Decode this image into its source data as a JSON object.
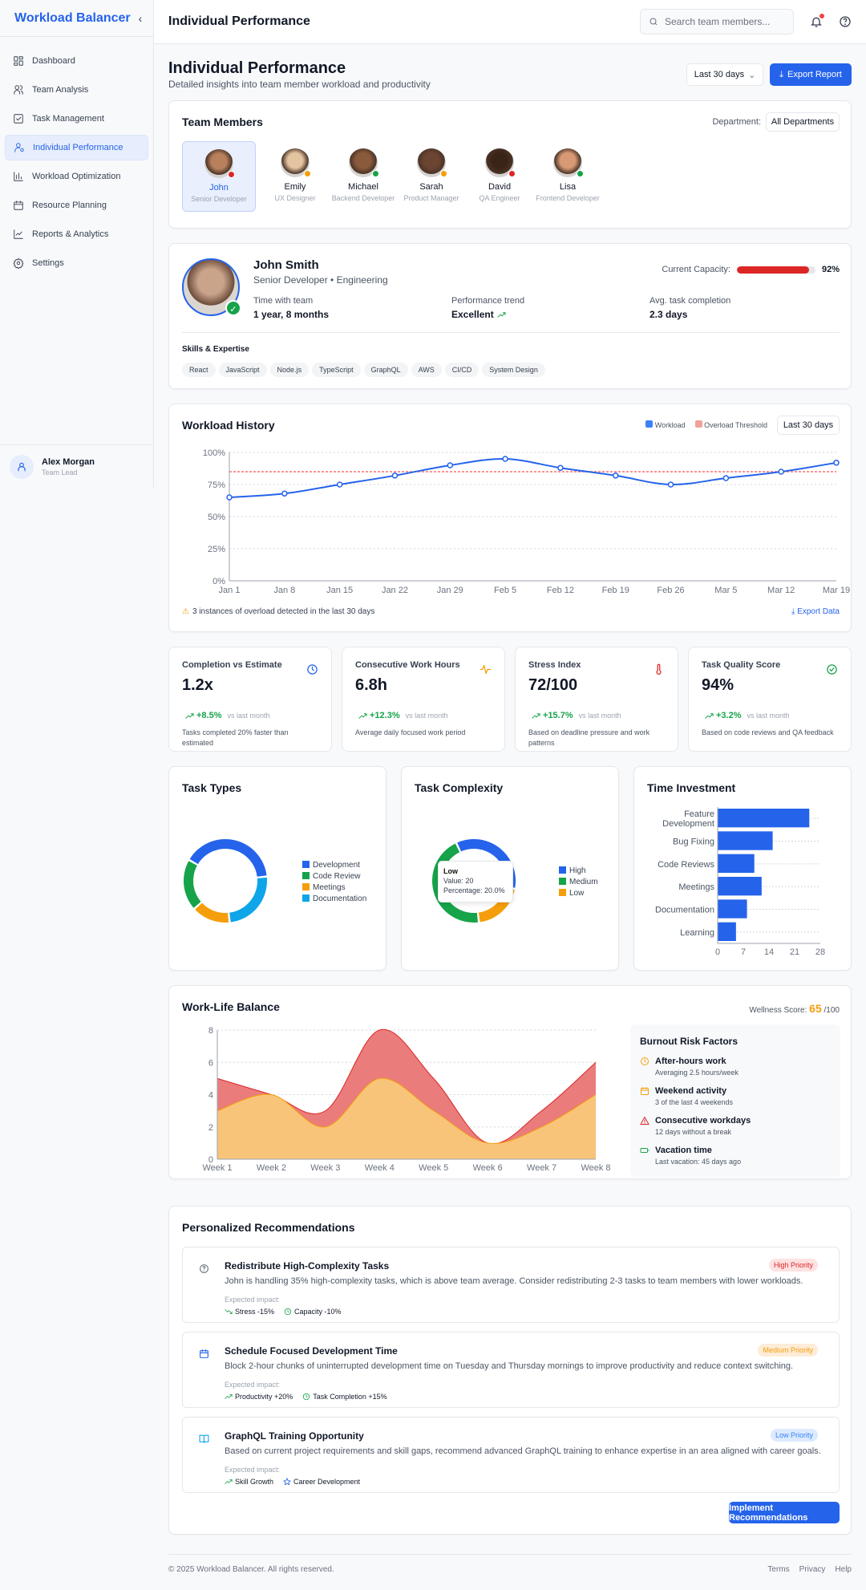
{
  "app": {
    "brand": "Workload Balancer",
    "header_title": "Individual Performance"
  },
  "search": {
    "placeholder": "Search team members..."
  },
  "sidebar": {
    "items": [
      {
        "label": "Dashboard",
        "icon": "grid-icon"
      },
      {
        "label": "Team Analysis",
        "icon": "users-icon"
      },
      {
        "label": "Task Management",
        "icon": "checkbox-icon"
      },
      {
        "label": "Individual Performance",
        "icon": "user-icon",
        "active": true
      },
      {
        "label": "Workload Optimization",
        "icon": "bar-chart-icon"
      },
      {
        "label": "Resource Planning",
        "icon": "calendar-icon"
      },
      {
        "label": "Reports & Analytics",
        "icon": "line-chart-icon"
      },
      {
        "label": "Settings",
        "icon": "gear-icon"
      }
    ],
    "user": {
      "name": "Alex Morgan",
      "role": "Team Lead"
    }
  },
  "page": {
    "title": "Individual Performance",
    "subtitle": "Detailed insights into team member workload and productivity",
    "range": "Last 30 days",
    "export": "Export Report"
  },
  "team": {
    "title": "Team Members",
    "dept_label": "Department:",
    "dept_value": "All Departments",
    "members": [
      {
        "name": "John",
        "role": "Senior Developer",
        "status": "#dc2626",
        "selected": true
      },
      {
        "name": "Emily",
        "role": "UX Designer",
        "status": "#f59e0b"
      },
      {
        "name": "Michael",
        "role": "Backend Developer",
        "status": "#16a34a"
      },
      {
        "name": "Sarah",
        "role": "Product Manager",
        "status": "#f59e0b"
      },
      {
        "name": "David",
        "role": "QA Engineer",
        "status": "#dc2626"
      },
      {
        "name": "Lisa",
        "role": "Frontend Developer",
        "status": "#16a34a"
      }
    ]
  },
  "profile": {
    "name": "John Smith",
    "title": "Senior Developer • Engineering",
    "capacity_label": "Current Capacity:",
    "capacity": 92,
    "capacity_text": "92%",
    "stats": [
      {
        "label": "Time with team",
        "value": "1 year, 8 months"
      },
      {
        "label": "Performance trend",
        "value": "Excellent"
      },
      {
        "label": "Avg. task completion",
        "value": "2.3 days"
      }
    ],
    "skills_title": "Skills & Expertise",
    "skills": [
      "React",
      "JavaScript",
      "Node.js",
      "TypeScript",
      "GraphQL",
      "AWS",
      "CI/CD",
      "System Design"
    ]
  },
  "workload": {
    "title": "Workload History",
    "legend_workload": "Workload",
    "legend_threshold": "Overload Threshold",
    "range": "Last 30 days",
    "warning": "3 instances of overload detected in the last 30 days",
    "export": "Export Data"
  },
  "stats": [
    {
      "title": "Completion vs Estimate",
      "value": "1.2x",
      "change": "+8.5%",
      "vs": "vs last month",
      "desc": "Tasks completed 20% faster than estimated",
      "icon": "clock-icon",
      "color": "#2563eb"
    },
    {
      "title": "Consecutive Work Hours",
      "value": "6.8h",
      "change": "+12.3%",
      "vs": "vs last month",
      "desc": "Average daily focused work period",
      "icon": "activity-icon",
      "color": "#f59e0b"
    },
    {
      "title": "Stress Index",
      "value": "72/100",
      "change": "+15.7%",
      "vs": "vs last month",
      "desc": "Based on deadline pressure and work patterns",
      "icon": "thermometer-icon",
      "color": "#dc2626"
    },
    {
      "title": "Task Quality Score",
      "value": "94%",
      "change": "+3.2%",
      "vs": "vs last month",
      "desc": "Based on code reviews and QA feedback",
      "icon": "check-circle-icon",
      "color": "#16a34a"
    }
  ],
  "worklife": {
    "title": "Work-Life Balance",
    "wellness_label": "Wellness Score:",
    "wellness": "65",
    "wellness_max": "/100",
    "burnout_title": "Burnout Risk Factors",
    "factors": [
      {
        "title": "After-hours work",
        "desc": "Averaging 2.5 hours/week",
        "icon": "clock-icon",
        "color": "#f59e0b"
      },
      {
        "title": "Weekend activity",
        "desc": "3 of the last 4 weekends",
        "icon": "calendar-icon",
        "color": "#f59e0b"
      },
      {
        "title": "Consecutive workdays",
        "desc": "12 days without a break",
        "icon": "warning-icon",
        "color": "#dc2626"
      },
      {
        "title": "Vacation time",
        "desc": "Last vacation: 45 days ago",
        "icon": "battery-icon",
        "color": "#16a34a"
      }
    ]
  },
  "recs": {
    "title": "Personalized Recommendations",
    "impact_label": "Expected impact:",
    "button": "Implement Recommendations",
    "items": [
      {
        "title": "Redistribute High-Complexity Tasks",
        "desc": "John is handling 35% high-complexity tasks, which is above team average. Consider redistributing 2-3 tasks to team members with lower workloads.",
        "priority": "High Priority",
        "icon": "help-circle-icon",
        "impacts": [
          "Stress -15%",
          "Capacity -10%"
        ]
      },
      {
        "title": "Schedule Focused Development Time",
        "desc": "Block 2-hour chunks of uninterrupted development time on Tuesday and Thursday mornings to improve productivity and reduce context switching.",
        "priority": "Medium Priority",
        "icon": "calendar-icon",
        "impacts": [
          "Productivity +20%",
          "Task Completion +15%"
        ]
      },
      {
        "title": "GraphQL Training Opportunity",
        "desc": "Based on current project requirements and skill gaps, recommend advanced GraphQL training to enhance expertise in an area aligned with career goals.",
        "priority": "Low Priority",
        "icon": "book-icon",
        "impacts": [
          "Skill Growth",
          "Career Development"
        ]
      }
    ]
  },
  "footer": {
    "copyright": "© 2025 Workload Balancer. All rights reserved.",
    "links": [
      "Terms",
      "Privacy",
      "Help"
    ]
  },
  "chart_data": [
    {
      "type": "line",
      "title": "Workload History",
      "x": [
        "Jan 1",
        "Jan 8",
        "Jan 15",
        "Jan 22",
        "Jan 29",
        "Feb 5",
        "Feb 12",
        "Feb 19",
        "Feb 26",
        "Mar 5",
        "Mar 12",
        "Mar 19"
      ],
      "series": [
        {
          "name": "Workload",
          "values": [
            65,
            68,
            75,
            82,
            90,
            95,
            88,
            82,
            75,
            80,
            85,
            92
          ],
          "color": "#2563eb"
        },
        {
          "name": "Overload Threshold",
          "values": [
            85,
            85,
            85,
            85,
            85,
            85,
            85,
            85,
            85,
            85,
            85,
            85
          ],
          "color": "#f87171"
        }
      ],
      "ylim": [
        0,
        100
      ],
      "yticks": [
        "0%",
        "25%",
        "50%",
        "75%",
        "100%"
      ],
      "grid": true,
      "legend": "top-right"
    },
    {
      "type": "pie",
      "title": "Task Types",
      "categories": [
        "Development",
        "Code Review",
        "Meetings",
        "Documentation"
      ],
      "values": [
        40,
        20,
        15,
        25
      ],
      "colors": [
        "#2563eb",
        "#16a34a",
        "#f59e0b",
        "#0ea5e9"
      ],
      "legend": "right"
    },
    {
      "type": "pie",
      "title": "Task Complexity",
      "categories": [
        "High",
        "Medium",
        "Low"
      ],
      "values": [
        35,
        45,
        20
      ],
      "colors": [
        "#2563eb",
        "#16a34a",
        "#f59e0b"
      ],
      "legend": "right",
      "tooltip": {
        "label": "Low",
        "value": "Value: 20",
        "pct": "Percentage: 20.0%"
      }
    },
    {
      "type": "bar",
      "orientation": "horizontal",
      "title": "Time Investment",
      "categories": [
        "Feature Development",
        "Bug Fixing",
        "Code Reviews",
        "Meetings",
        "Documentation",
        "Learning"
      ],
      "values": [
        25,
        15,
        10,
        12,
        8,
        5
      ],
      "xlim": [
        0,
        28
      ],
      "xticks": [
        "0",
        "7",
        "14",
        "21",
        "28"
      ],
      "color": "#2563eb"
    },
    {
      "type": "area",
      "title": "Work-Life Balance",
      "x": [
        "Week 1",
        "Week 2",
        "Week 3",
        "Week 4",
        "Week 5",
        "Week 6",
        "Week 7",
        "Week 8"
      ],
      "series": [
        {
          "values": [
            5,
            4,
            3,
            8,
            5,
            1,
            3,
            6
          ],
          "color": "#ea7c7c"
        },
        {
          "values": [
            3,
            4,
            2,
            5,
            3,
            1,
            2,
            4
          ],
          "color": "#f8c47a"
        }
      ],
      "ylim": [
        0,
        8
      ],
      "yticks": [
        "0",
        "2",
        "4",
        "6",
        "8"
      ],
      "grid": true
    }
  ]
}
